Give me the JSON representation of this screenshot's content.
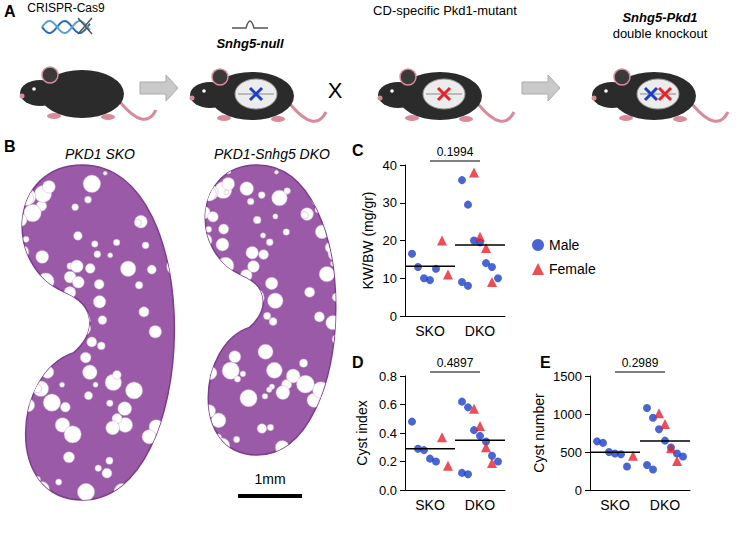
{
  "panels": {
    "A": {
      "label": "A",
      "crispr": "CRISPR-Cas9",
      "knockout": "Snhg5-null",
      "cross": "X",
      "mutant": "CD-specific Pkd1-mutant",
      "result": "Snhg5-Pkd1 double knockout"
    },
    "B": {
      "label": "B",
      "kidneys": [
        "PKD1 SKO",
        "PKD1-Snhg5 DKO"
      ],
      "scale_bar": "1mm"
    }
  },
  "chart_data": [
    {
      "panel": "C",
      "type": "scatter",
      "categories": [
        "SKO",
        "DKO"
      ],
      "ylabel": "KW/BW (mg/gr)",
      "ylim": [
        0,
        40
      ],
      "yticks": [
        0,
        10,
        20,
        30,
        40
      ],
      "series": [
        {
          "name": "Male",
          "color": "#1c3fc9",
          "marker": "circle",
          "values": [
            [
              16.5,
              13,
              10,
              9.5,
              12.5
            ],
            [
              36,
              29.5,
              20,
              19.5,
              14,
              13,
              10,
              9,
              8
            ]
          ]
        },
        {
          "name": "Female",
          "color": "#e8222c",
          "marker": "triangle",
          "values": [
            [
              20,
              11
            ],
            [
              38,
              21,
              18,
              9
            ]
          ]
        }
      ],
      "means": [
        13.2,
        18.8
      ],
      "p_value": "0.1994",
      "legend": "right"
    },
    {
      "panel": "D",
      "type": "scatter",
      "categories": [
        "SKO",
        "DKO"
      ],
      "ylabel": "Cyst index",
      "ylim": [
        0,
        0.8
      ],
      "yticks": [
        {
          "value": 0,
          "label": "0.0"
        },
        {
          "value": 0.2,
          "label": "0.2"
        },
        {
          "value": 0.4,
          "label": "0.4"
        },
        {
          "value": 0.6,
          "label": "0.6"
        },
        {
          "value": 0.8,
          "label": "0.8"
        }
      ],
      "series": [
        {
          "name": "Male",
          "color": "#1c3fc9",
          "marker": "circle",
          "values": [
            [
              0.48,
              0.29,
              0.28,
              0.22,
              0.2
            ],
            [
              0.62,
              0.58,
              0.42,
              0.38,
              0.34,
              0.24,
              0.2,
              0.12,
              0.11
            ]
          ]
        },
        {
          "name": "Female",
          "color": "#e8222c",
          "marker": "triangle",
          "values": [
            [
              0.37,
              0.17
            ],
            [
              0.57,
              0.45,
              0.3,
              0.19
            ]
          ]
        }
      ],
      "means": [
        0.29,
        0.35
      ],
      "p_value": "0.4897"
    },
    {
      "panel": "E",
      "type": "scatter",
      "categories": [
        "SKO",
        "DKO"
      ],
      "ylabel": "Cyst number",
      "ylim": [
        0,
        1500
      ],
      "yticks": [
        0,
        500,
        1000,
        1500
      ],
      "series": [
        {
          "name": "Male",
          "color": "#1c3fc9",
          "marker": "circle",
          "values": [
            [
              640,
              620,
              500,
              480,
              470,
              310
            ],
            [
              1080,
              950,
              800,
              650,
              560,
              480,
              440,
              330,
              270
            ]
          ]
        },
        {
          "name": "Female",
          "color": "#e8222c",
          "marker": "triangle",
          "values": [
            [
              450
            ],
            [
              1010,
              870,
              550,
              380
            ]
          ]
        }
      ],
      "means": [
        496,
        644
      ],
      "p_value": "0.2989"
    }
  ]
}
